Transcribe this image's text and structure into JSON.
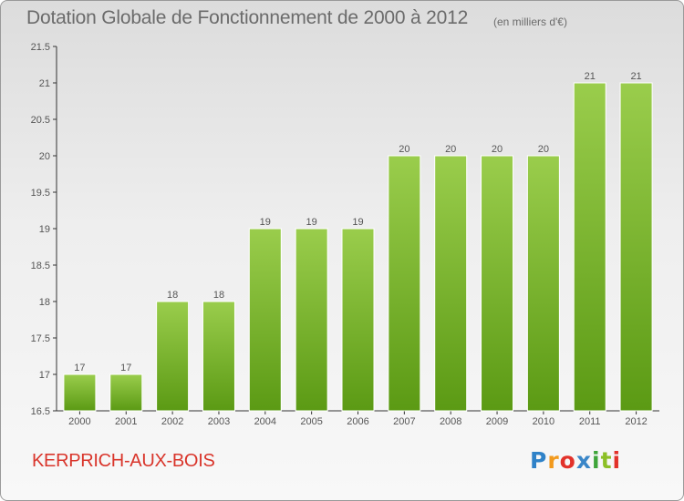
{
  "title": "Dotation Globale de Fonctionnement de 2000 à 2012",
  "subtitle": "(en milliers d'€)",
  "footer": {
    "commune": "KERPRICH-AUX-BOIS",
    "logo": [
      "P",
      "r",
      "o",
      "x",
      "i",
      "t",
      "i"
    ]
  },
  "colors": {
    "bar_top": "#9acd4c",
    "bar_bottom": "#5b9a14",
    "title": "#6b6b6b",
    "commune": "#d9352b"
  },
  "chart_data": {
    "type": "bar",
    "title": "Dotation Globale de Fonctionnement de 2000 à 2012",
    "subtitle": "(en milliers d'€)",
    "xlabel": "",
    "ylabel": "",
    "categories": [
      "2000",
      "2001",
      "2002",
      "2003",
      "2004",
      "2005",
      "2006",
      "2007",
      "2008",
      "2009",
      "2010",
      "2011",
      "2012"
    ],
    "values": [
      17,
      17,
      18,
      18,
      19,
      19,
      19,
      20,
      20,
      20,
      20,
      21,
      21
    ],
    "ylim": [
      16.5,
      21.5
    ],
    "yticks": [
      16.5,
      17,
      17.5,
      18,
      18.5,
      19,
      19.5,
      20,
      20.5,
      21,
      21.5
    ],
    "ytick_labels": [
      "16.5",
      "17",
      "17.5",
      "18",
      "18.5",
      "19",
      "19.5",
      "20",
      "20.5",
      "21",
      "21.5"
    ],
    "data_labels": [
      "17",
      "17",
      "18",
      "18",
      "19",
      "19",
      "19",
      "20",
      "20",
      "20",
      "20",
      "21",
      "21"
    ],
    "grid": false,
    "legend": "none"
  }
}
